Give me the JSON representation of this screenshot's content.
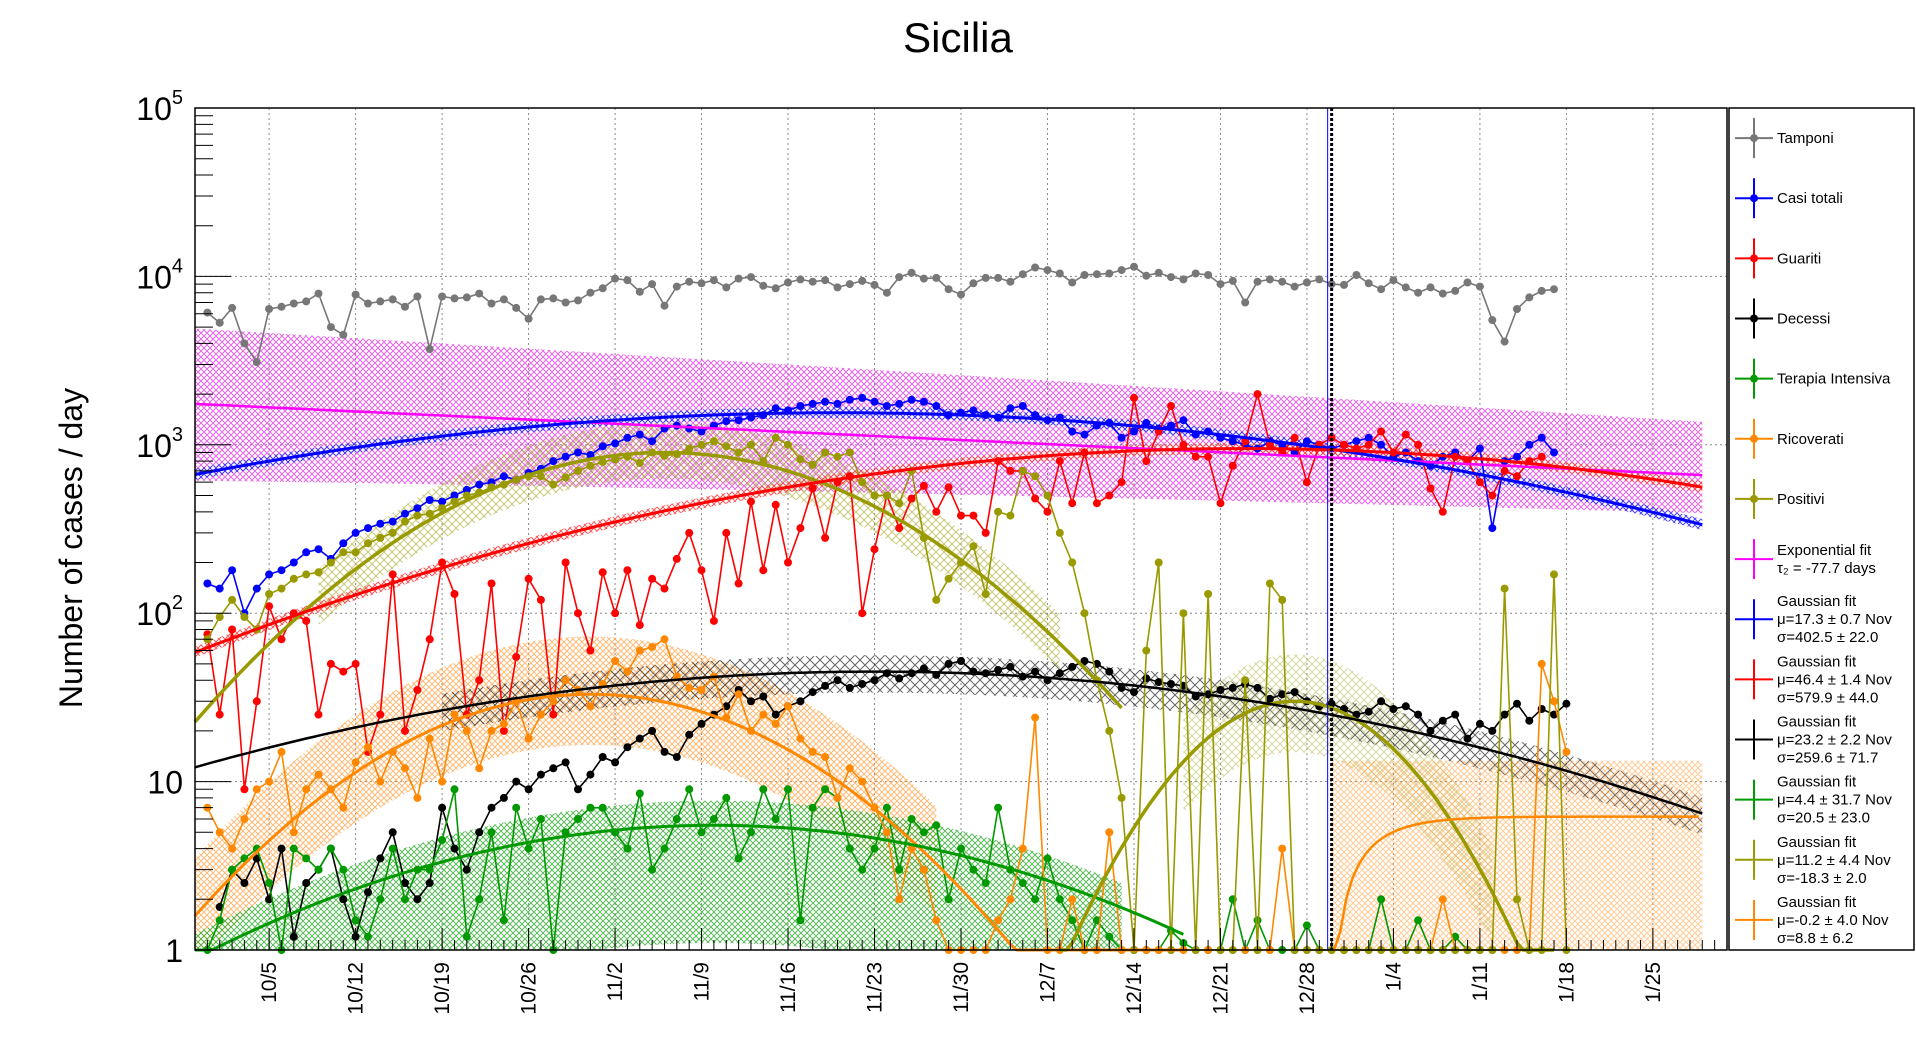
{
  "chart_data": {
    "type": "line",
    "title": "Sicilia",
    "xlabel": "",
    "ylabel": "Number of cases / day",
    "yscale": "log",
    "ylim": [
      1,
      100000
    ],
    "xlim": [
      "2020-09-29",
      "2021-01-31"
    ],
    "grid": true,
    "legend_position": "right",
    "y_ticks": [
      {
        "value": 1,
        "base": "1",
        "exp": ""
      },
      {
        "value": 10,
        "base": "10",
        "exp": ""
      },
      {
        "value": 100,
        "base": "10",
        "exp": "2"
      },
      {
        "value": 1000,
        "base": "10",
        "exp": "3"
      },
      {
        "value": 10000,
        "base": "10",
        "exp": "4"
      },
      {
        "value": 100000,
        "base": "10",
        "exp": "5"
      }
    ],
    "x_ticks": [
      {
        "date": "2020-10-05",
        "label": "10/5"
      },
      {
        "date": "2020-10-12",
        "label": "10/12"
      },
      {
        "date": "2020-10-19",
        "label": "10/19"
      },
      {
        "date": "2020-10-26",
        "label": "10/26"
      },
      {
        "date": "2020-11-02",
        "label": "11/2"
      },
      {
        "date": "2020-11-09",
        "label": "11/9"
      },
      {
        "date": "2020-11-16",
        "label": "11/16"
      },
      {
        "date": "2020-11-23",
        "label": "11/23"
      },
      {
        "date": "2020-11-30",
        "label": "11/30"
      },
      {
        "date": "2020-12-07",
        "label": "12/7"
      },
      {
        "date": "2020-12-14",
        "label": "12/14"
      },
      {
        "date": "2020-12-21",
        "label": "12/21"
      },
      {
        "date": "2020-12-28",
        "label": "12/28"
      },
      {
        "date": "2021-01-04",
        "label": "1/4"
      },
      {
        "date": "2021-01-11",
        "label": "1/11"
      },
      {
        "date": "2021-01-18",
        "label": "1/18"
      },
      {
        "date": "2021-01-25",
        "label": "1/25"
      }
    ],
    "vertical_line_date": "2020-12-30",
    "series": [
      {
        "name": "Tamponi",
        "color": "#777777",
        "start": "2020-09-30",
        "values": [
          6100,
          5300,
          6500,
          4000,
          3100,
          6400,
          6600,
          6900,
          7100,
          7900,
          5000,
          4500,
          7800,
          6900,
          7100,
          7300,
          6600,
          7600,
          3700,
          7600,
          7400,
          7500,
          7900,
          6900,
          7300,
          6500,
          5600,
          7300,
          7400,
          7000,
          7200,
          8000,
          8500,
          9700,
          9500,
          8100,
          9000,
          6700,
          8700,
          9300,
          9100,
          9500,
          8600,
          9700,
          9900,
          8800,
          8500,
          9200,
          9600,
          9300,
          9500,
          8600,
          9000,
          9400,
          8900,
          8000,
          9900,
          10500,
          9700,
          9800,
          8400,
          7800,
          9100,
          9800,
          9800,
          9300,
          10300,
          11300,
          10900,
          10400,
          9200,
          10200,
          10300,
          10400,
          10900,
          11400,
          10100,
          10500,
          9900,
          9600,
          10400,
          10200,
          9000,
          9400,
          7000,
          9300,
          9600,
          9300,
          8700,
          9200,
          9600,
          9000,
          8900,
          10200,
          9100,
          8400,
          9500,
          8600,
          8000,
          8600,
          7900,
          8200,
          9200,
          8700,
          5500,
          4100,
          6400,
          7500,
          8200,
          8400
        ]
      },
      {
        "name": "Casi totali",
        "color": "#0000ff",
        "start": "2020-09-30",
        "values": [
          150,
          140,
          180,
          100,
          140,
          170,
          180,
          200,
          230,
          240,
          210,
          260,
          300,
          320,
          340,
          350,
          390,
          420,
          470,
          460,
          500,
          540,
          580,
          600,
          650,
          620,
          680,
          720,
          800,
          850,
          900,
          870,
          980,
          1020,
          1100,
          1150,
          1050,
          1250,
          1300,
          1250,
          1200,
          1300,
          1380,
          1400,
          1450,
          1500,
          1650,
          1600,
          1700,
          1750,
          1800,
          1750,
          1850,
          1900,
          1800,
          1700,
          1750,
          1850,
          1800,
          1700,
          1500,
          1550,
          1600,
          1500,
          1450,
          1650,
          1700,
          1500,
          1400,
          1450,
          1200,
          1150,
          1300,
          1350,
          1100,
          1200,
          1350,
          1250,
          1300,
          1400,
          1150,
          1200,
          1100,
          1050,
          1000,
          950,
          1050,
          1000,
          900,
          1050,
          1000,
          950,
          1000,
          1050,
          1100,
          1000,
          850,
          900,
          800,
          750,
          850,
          900,
          800,
          950,
          320,
          800,
          850,
          1000,
          1100,
          900
        ]
      },
      {
        "name": "Guariti",
        "color": "#ff0000",
        "start": "2020-09-30",
        "values": [
          75,
          25,
          80,
          9,
          30,
          110,
          70,
          100,
          90,
          25,
          50,
          45,
          50,
          15,
          25,
          170,
          20,
          35,
          70,
          200,
          130,
          25,
          40,
          150,
          20,
          55,
          160,
          120,
          25,
          200,
          100,
          60,
          175,
          100,
          180,
          85,
          160,
          140,
          210,
          300,
          180,
          90,
          300,
          150,
          460,
          180,
          440,
          200,
          320,
          550,
          280,
          600,
          650,
          100,
          240,
          500,
          320,
          480,
          570,
          400,
          560,
          380,
          380,
          300,
          800,
          700,
          700,
          480,
          400,
          800,
          450,
          900,
          450,
          500,
          600,
          1900,
          800,
          1200,
          1700,
          1000,
          850,
          850,
          450,
          750,
          1050,
          2000,
          1000,
          900,
          1100,
          600,
          1000,
          1100,
          1000,
          950,
          1000,
          1200,
          900,
          1150,
          1000,
          550,
          400,
          850,
          800,
          600,
          500,
          700,
          650,
          800,
          850
        ]
      },
      {
        "name": "Decessi",
        "color": "#000000",
        "start": "2020-10-01",
        "values": [
          1.8,
          3,
          2.5,
          3.5,
          2,
          4,
          1.2,
          2.5,
          3,
          4,
          2,
          1.2,
          2.2,
          3.5,
          5,
          2.5,
          2,
          2.5,
          7,
          4,
          3,
          5,
          7,
          8,
          10,
          9,
          11,
          12,
          13,
          9,
          11,
          14,
          13,
          16,
          18,
          20,
          15,
          14,
          19,
          22,
          25,
          28,
          35,
          30,
          32,
          25,
          28,
          30,
          34,
          37,
          40,
          36,
          38,
          40,
          44,
          41,
          44,
          47,
          43,
          50,
          52,
          45,
          44,
          46,
          48,
          42,
          45,
          40,
          44,
          48,
          52,
          50,
          45,
          36,
          34,
          41,
          39,
          38,
          37,
          32,
          33,
          35,
          36,
          38,
          36,
          31,
          33,
          34,
          30,
          28,
          29,
          27,
          25,
          26,
          30,
          27,
          28,
          25,
          20,
          23,
          25,
          18,
          22,
          20,
          25,
          29,
          23,
          27,
          25,
          29
        ]
      },
      {
        "name": "Terapia Intensiva",
        "color": "#009900",
        "start": "2020-09-30",
        "values": [
          1,
          1.5,
          3,
          3.5,
          4,
          2.5,
          1,
          4,
          3.5,
          3,
          4,
          3,
          1.5,
          1.2,
          2,
          4,
          2,
          3,
          3,
          4.5,
          9,
          1.2,
          2,
          5,
          1.5,
          7,
          4,
          6,
          1,
          5,
          6,
          7,
          7,
          5,
          4,
          8.5,
          3,
          4,
          6,
          9,
          5,
          6,
          8,
          3.5,
          5,
          9,
          6,
          9,
          1.5,
          7,
          9,
          8,
          4,
          3,
          4,
          7,
          3,
          6,
          5,
          5.5,
          2,
          4,
          3,
          2.5,
          7,
          3,
          2.5,
          2,
          3.5,
          2,
          1.5,
          1,
          1.5,
          1.2,
          1,
          1,
          1,
          1,
          1.3,
          1.1,
          1,
          1,
          1,
          2,
          1,
          1.5,
          1,
          1,
          1,
          1.4,
          1,
          1,
          1,
          1,
          1,
          2,
          1,
          1,
          1.5,
          1,
          1,
          1.2,
          1,
          1,
          1
        ]
      },
      {
        "name": "Ricoverati",
        "color": "#ff8800",
        "start": "2020-09-30",
        "values": [
          7,
          5,
          4,
          6,
          9,
          10,
          15,
          5,
          9,
          11,
          9,
          7,
          13,
          16,
          10,
          15,
          12,
          8,
          18,
          10,
          25,
          20,
          12,
          20,
          22,
          30,
          18,
          25,
          30,
          40,
          35,
          28,
          38,
          52,
          45,
          60,
          63,
          70,
          42,
          36,
          35,
          42,
          24,
          33,
          20,
          25,
          22,
          28,
          18,
          15,
          14,
          8,
          12,
          10,
          7,
          5,
          2,
          4,
          3,
          1.5,
          1,
          1,
          1,
          1,
          1.5,
          2,
          4,
          24,
          1,
          1,
          2,
          1,
          1,
          5,
          1,
          1,
          1,
          1,
          1,
          1,
          1,
          1,
          1,
          1,
          1,
          1,
          1,
          4,
          1,
          1,
          1,
          1,
          1,
          1,
          1,
          1,
          1,
          1,
          1,
          1,
          2,
          1,
          1,
          1,
          1,
          1,
          1,
          1,
          50,
          30,
          15
        ]
      },
      {
        "name": "Positivi",
        "color": "#999900",
        "start": "2020-09-30",
        "values": [
          70,
          95,
          120,
          95,
          80,
          130,
          140,
          160,
          170,
          175,
          200,
          230,
          230,
          260,
          280,
          300,
          350,
          380,
          390,
          420,
          460,
          500,
          520,
          560,
          580,
          620,
          650,
          650,
          580,
          640,
          700,
          750,
          790,
          820,
          850,
          780,
          900,
          860,
          880,
          950,
          1000,
          1050,
          980,
          900,
          1000,
          800,
          1100,
          1000,
          820,
          760,
          900,
          850,
          900,
          600,
          500,
          500,
          450,
          700,
          280,
          120,
          160,
          200,
          250,
          130,
          400,
          380,
          700,
          650,
          500,
          300,
          200,
          100,
          40,
          20,
          8,
          1,
          60,
          200,
          1,
          100,
          1,
          130,
          1,
          1,
          40,
          1,
          150,
          120,
          1,
          1,
          1,
          1,
          1,
          1,
          1,
          1,
          1,
          1,
          1,
          1,
          1,
          1,
          1,
          1,
          1,
          140,
          2,
          1,
          1,
          170,
          1
        ]
      }
    ],
    "fits": [
      {
        "name": "Exponential fit",
        "color": "#ff00ff",
        "param_lines": [
          "τ₂ = -77.7 days"
        ]
      },
      {
        "name": "Gaussian fit",
        "color": "#0000ff",
        "param_lines": [
          "μ=17.3 ± 0.7 Nov",
          "σ=402.5 ± 22.0"
        ]
      },
      {
        "name": "Gaussian fit",
        "color": "#ff0000",
        "param_lines": [
          "μ=46.4 ± 1.4 Nov",
          "σ=579.9 ± 44.0"
        ]
      },
      {
        "name": "Gaussian fit",
        "color": "#000000",
        "param_lines": [
          "μ=23.2 ± 2.2 Nov",
          "σ=259.6 ± 71.7"
        ]
      },
      {
        "name": "Gaussian fit",
        "color": "#009900",
        "param_lines": [
          "μ=4.4 ± 31.7 Nov",
          "σ=20.5 ± 23.0"
        ]
      },
      {
        "name": "Gaussian fit",
        "color": "#999900",
        "param_lines": [
          "μ=11.2 ± 4.4 Nov",
          "σ=-18.3 ± 2.0"
        ]
      },
      {
        "name": "Gaussian fit",
        "color": "#ff8800",
        "param_lines": [
          "μ=-0.2 ± 4.0 Nov",
          "σ=8.8 ± 6.2"
        ]
      }
    ]
  }
}
